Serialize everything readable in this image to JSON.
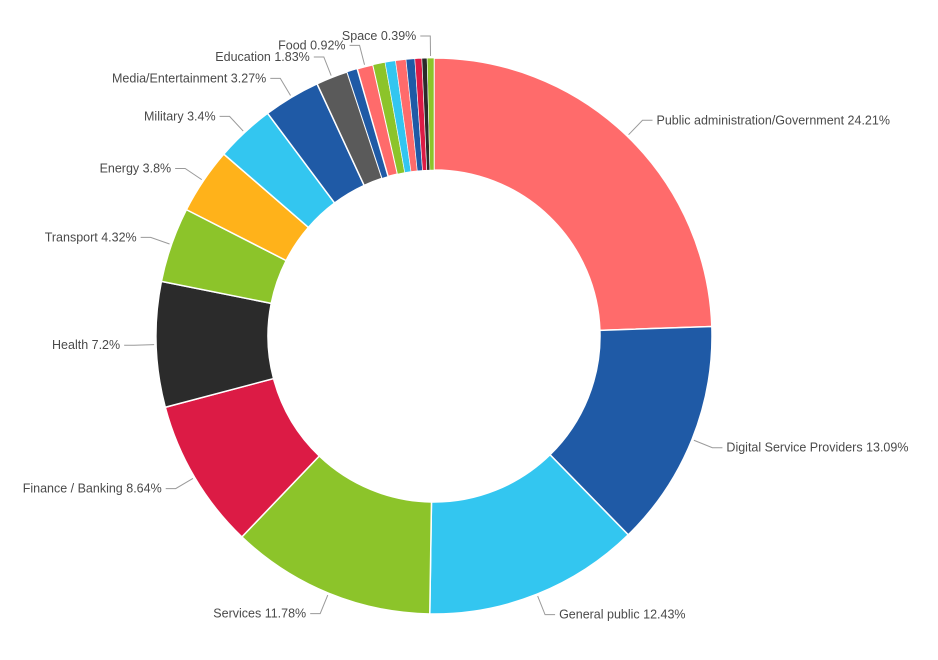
{
  "chart_data": {
    "type": "pie",
    "donut": true,
    "slices": [
      {
        "label": "Public administration/Government 24.21%",
        "value": 24.21,
        "color": "#ff6b6b"
      },
      {
        "label": "Digital Service Providers 13.09%",
        "value": 13.09,
        "color": "#1f5aa6"
      },
      {
        "label": "General public 12.43%",
        "value": 12.43,
        "color": "#33c6f0"
      },
      {
        "label": "Services 11.78%",
        "value": 11.78,
        "color": "#8cc42a"
      },
      {
        "label": "Finance / Banking 8.64%",
        "value": 8.64,
        "color": "#dc1b45"
      },
      {
        "label": "Health 7.2%",
        "value": 7.2,
        "color": "#2b2b2b"
      },
      {
        "label": "Transport 4.32%",
        "value": 4.32,
        "color": "#8cc42a"
      },
      {
        "label": "Energy 3.8%",
        "value": 3.8,
        "color": "#ffb21a"
      },
      {
        "label": "Military 3.4%",
        "value": 3.4,
        "color": "#33c6f0"
      },
      {
        "label": "Media/Entertainment 3.27%",
        "value": 3.27,
        "color": "#1f5aa6"
      },
      {
        "label": "Education 1.83%",
        "value": 1.83,
        "color": "#5a5a5a"
      },
      {
        "label": "",
        "value": 0.6,
        "color": "#1f5aa6"
      },
      {
        "label": "Food 0.92%",
        "value": 0.92,
        "color": "#ff6b6b"
      },
      {
        "label": "",
        "value": 0.7,
        "color": "#8cc42a"
      },
      {
        "label": "",
        "value": 0.6,
        "color": "#33c6f0"
      },
      {
        "label": "",
        "value": 0.6,
        "color": "#ff6b6b"
      },
      {
        "label": "",
        "value": 0.5,
        "color": "#1f5aa6"
      },
      {
        "label": "",
        "value": 0.4,
        "color": "#dc1b45"
      },
      {
        "label": "",
        "value": 0.3,
        "color": "#2b2b2b"
      },
      {
        "label": "Space 0.39%",
        "value": 0.39,
        "color": "#8cc42a"
      }
    ]
  }
}
